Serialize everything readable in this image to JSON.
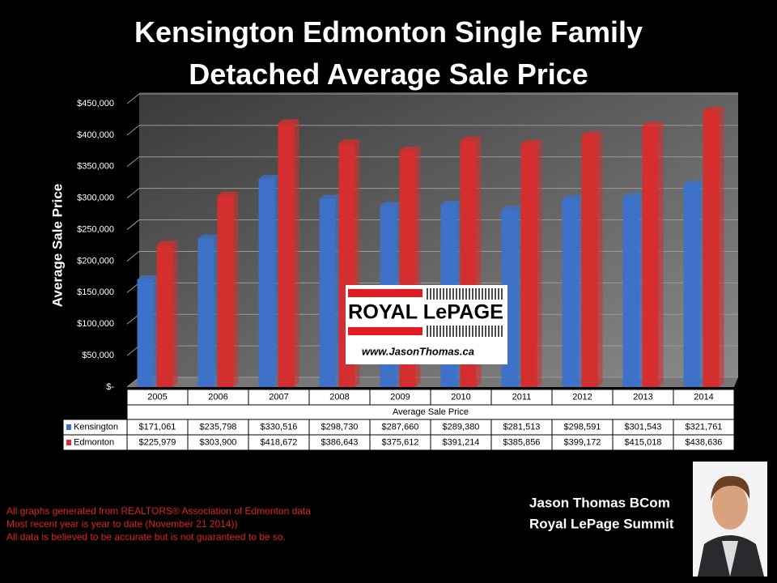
{
  "chart_data": {
    "type": "bar",
    "title": "Kensington Edmonton Single Family Detached Average Sale Price",
    "y_label": "Average Sale Price",
    "x_label": "Average Sale Price",
    "categories": [
      "2005",
      "2006",
      "2007",
      "2008",
      "2009",
      "2010",
      "2011",
      "2012",
      "2013",
      "2014"
    ],
    "series": [
      {
        "name": "Kensington",
        "color": "#3d72c8",
        "values": [
          171061,
          235798,
          330516,
          298730,
          287660,
          289380,
          281513,
          298591,
          301543,
          321761
        ],
        "value_labels": [
          "$171,061",
          "$235,798",
          "$330,516",
          "$298,730",
          "$287,660",
          "$289,380",
          "$281,513",
          "$298,591",
          "$301,543",
          "$321,761"
        ]
      },
      {
        "name": "Edmonton",
        "color": "#d42e2e",
        "values": [
          225979,
          303900,
          418672,
          386643,
          375612,
          391214,
          385856,
          399172,
          415018,
          438636
        ],
        "value_labels": [
          "$225,979",
          "$303,900",
          "$418,672",
          "$386,643",
          "$375,612",
          "$391,214",
          "$385,856",
          "$399,172",
          "$415,018",
          "$438,636"
        ]
      }
    ],
    "ylim": [
      0,
      450000
    ],
    "yticks": [
      {
        "value": 0,
        "label": "$-"
      },
      {
        "value": 50000,
        "label": "$50,000"
      },
      {
        "value": 100000,
        "label": "$100,000"
      },
      {
        "value": 150000,
        "label": "$150,000"
      },
      {
        "value": 200000,
        "label": "$200,000"
      },
      {
        "value": 250000,
        "label": "$250,000"
      },
      {
        "value": 300000,
        "label": "$300,000"
      },
      {
        "value": 350000,
        "label": "$350,000"
      },
      {
        "value": 400000,
        "label": "$400,000"
      },
      {
        "value": 450000,
        "label": "$450,000"
      }
    ],
    "grid": true
  },
  "logo": {
    "brand": "ROYAL LePAGE",
    "url": "www.JasonThomas.ca"
  },
  "footnotes": [
    "All graphs generated from REALTORS® Association of Edmonton data",
    "Most recent year is year to date (November 21 2014))",
    "All data is believed to be accurate but is not guaranteed to be so."
  ],
  "credit": {
    "name": "Jason Thomas BCom",
    "company": "Royal LePage Summit"
  }
}
